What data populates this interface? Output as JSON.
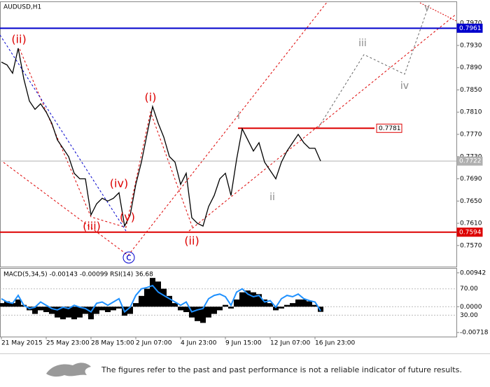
{
  "chart_data": [
    {
      "type": "line",
      "title": "AUDUSD,H1",
      "categories": [
        "21 May 2015",
        null,
        null,
        null,
        null,
        null,
        null,
        null,
        "25 May 23:00",
        null,
        null,
        null,
        null,
        null,
        null,
        null,
        "28 May 15:00",
        null,
        null,
        null,
        null,
        null,
        null,
        null,
        "2 Jun 07:00",
        null,
        null,
        null,
        null,
        null,
        null,
        null,
        "4 Jun 23:00",
        null,
        null,
        null,
        null,
        null,
        null,
        null,
        "9 Jun 15:00",
        null,
        null,
        null,
        null,
        null,
        null,
        null,
        "12 Jun 07:00",
        null,
        null,
        null,
        null,
        null,
        null,
        null,
        "16 Jun 23:00",
        null
      ],
      "series": [
        {
          "name": "AUDUSD",
          "color": "#000000",
          "values": [
            0.79,
            0.7895,
            0.788,
            0.7925,
            0.787,
            0.783,
            0.7815,
            0.7825,
            0.781,
            0.779,
            0.776,
            0.7745,
            0.773,
            0.77,
            0.769,
            0.769,
            0.7625,
            0.7645,
            0.7655,
            0.765,
            0.7655,
            0.7665,
            0.7605,
            0.7625,
            0.768,
            0.772,
            0.777,
            0.782,
            0.779,
            0.7765,
            0.773,
            0.772,
            0.768,
            0.77,
            0.762,
            0.761,
            0.7605,
            0.764,
            0.766,
            0.769,
            0.77,
            0.766,
            0.7725,
            0.778,
            0.776,
            0.774,
            0.7755,
            0.772,
            0.7705,
            0.769,
            0.772,
            0.774,
            0.7755,
            0.777,
            0.7755,
            0.7745,
            0.7745,
            0.7722
          ]
        }
      ],
      "ylim": [
        0.7532,
        0.8008
      ],
      "yticks": [
        {
          "value": 0.757,
          "label": "0.7570"
        },
        {
          "value": 0.761,
          "label": "0.7610"
        },
        {
          "value": 0.765,
          "label": "0.7650"
        },
        {
          "value": 0.769,
          "label": "0.7690"
        },
        {
          "value": 0.773,
          "label": "0.7730"
        },
        {
          "value": 0.777,
          "label": "0.7770"
        },
        {
          "value": 0.781,
          "label": "0.7810"
        },
        {
          "value": 0.785,
          "label": "0.7850"
        },
        {
          "value": 0.789,
          "label": "0.7890"
        },
        {
          "value": 0.793,
          "label": "0.7930"
        },
        {
          "value": 0.797,
          "label": "0.7970"
        }
      ],
      "levels": [
        {
          "value": 0.7961,
          "label": "0.7961",
          "color": "#0000cc"
        },
        {
          "value": 0.7781,
          "label": "0.7781",
          "color": "#dd0000"
        },
        {
          "value": 0.7594,
          "label": "0.7594",
          "color": "#dd0000"
        },
        {
          "value": 0.7722,
          "label": "0.7722",
          "color": "#b0b0b0"
        }
      ],
      "annotations": [
        {
          "text": "(ii)",
          "color": "#dd0000"
        },
        {
          "text": "(i)",
          "color": "#dd0000"
        },
        {
          "text": "(iii)",
          "color": "#dd0000"
        },
        {
          "text": "(iv)",
          "color": "#dd0000"
        },
        {
          "text": "(v)",
          "color": "#dd0000"
        },
        {
          "text": "c",
          "color": "#0000cc"
        },
        {
          "text": "(ii)",
          "color": "#dd0000"
        },
        {
          "text": "i",
          "color": "#888888"
        },
        {
          "text": "ii",
          "color": "#888888"
        },
        {
          "text": "iii",
          "color": "#888888"
        },
        {
          "text": "iv",
          "color": "#888888"
        },
        {
          "text": "v",
          "color": "#888888"
        }
      ]
    },
    {
      "type": "bar",
      "title": "MACD(5,34,5) -0.00143 -0.00099 RSI(14) 36.68",
      "series": [
        {
          "name": "MACD",
          "color": "#000000",
          "values": [
            0.001,
            0.0015,
            0.001,
            0.002,
            0.0005,
            -0.001,
            -0.002,
            -0.001,
            -0.0015,
            -0.002,
            -0.003,
            -0.0035,
            -0.003,
            -0.0035,
            -0.003,
            -0.002,
            -0.0035,
            -0.002,
            -0.001,
            -0.0015,
            -0.001,
            -0.0005,
            -0.0025,
            -0.002,
            0.001,
            0.003,
            0.005,
            0.008,
            0.007,
            0.005,
            0.003,
            0.001,
            -0.001,
            -0.0015,
            -0.003,
            -0.004,
            -0.0045,
            -0.003,
            -0.002,
            -0.001,
            0.0005,
            -0.0005,
            0.002,
            0.004,
            0.0045,
            0.004,
            0.0035,
            0.002,
            0.001,
            -0.001,
            -0.0005,
            0.0005,
            0.001,
            0.002,
            0.002,
            0.0015,
            0.0005,
            -0.00143
          ]
        },
        {
          "name": "RSI",
          "color": "#1e90ff",
          "axis": "y2",
          "values": [
            55,
            50,
            48,
            60,
            45,
            40,
            42,
            50,
            45,
            40,
            38,
            42,
            40,
            45,
            42,
            40,
            35,
            48,
            50,
            45,
            50,
            55,
            35,
            42,
            60,
            70,
            72,
            75,
            65,
            60,
            55,
            50,
            45,
            50,
            35,
            38,
            40,
            55,
            60,
            62,
            58,
            45,
            65,
            70,
            62,
            58,
            60,
            50,
            52,
            42,
            55,
            60,
            58,
            62,
            55,
            52,
            50,
            36.68
          ]
        }
      ],
      "ylim": [
        -0.00832,
        0.01056
      ],
      "yticks": [
        {
          "value": 0.00942,
          "label": "0.00942"
        },
        {
          "value": 0,
          "label": "0.0000"
        },
        {
          "value": -0.00718,
          "label": "-0.00718"
        }
      ],
      "y2lim": [
        -2.6,
        100.5
      ],
      "y2ticks": [
        {
          "value": 70,
          "label": "70.00"
        },
        {
          "value": 30,
          "label": "30.00"
        }
      ]
    }
  ],
  "footer": {
    "text": "The figures refer to the past and past performance is not a reliable indicator of future results."
  }
}
